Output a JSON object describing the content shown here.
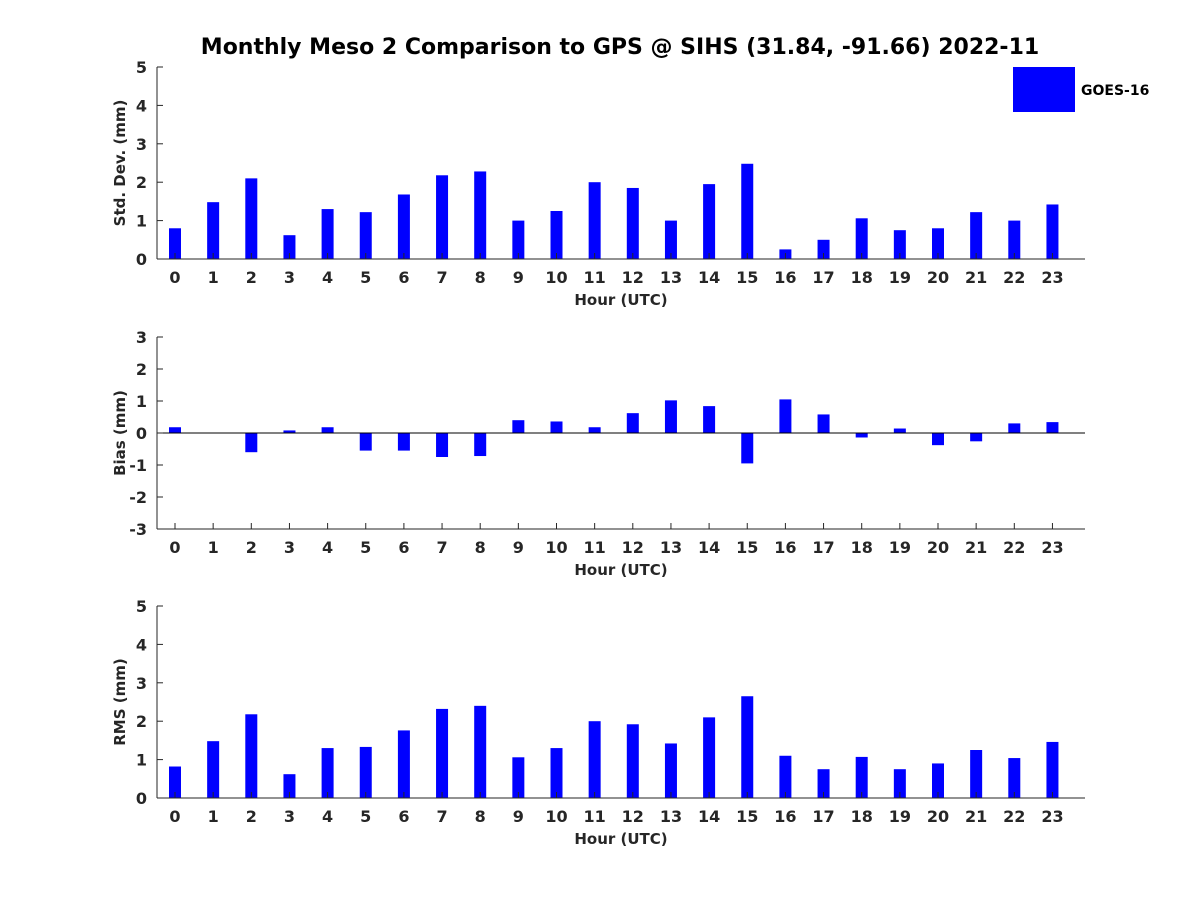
{
  "title": "Monthly Meso 2 Comparison to GPS @ SIHS (31.84, -91.66) 2022-11",
  "legend": {
    "label": "GOES-16",
    "color": "#0000ff",
    "placement": "top-right"
  },
  "colors": {
    "bar": "#0000ff",
    "axis": "#262626",
    "zero_line": "#000000"
  },
  "chart_data": [
    {
      "type": "bar",
      "xlabel": "Hour (UTC)",
      "ylabel": "Std. Dev. (mm)",
      "ylim": [
        0,
        5
      ],
      "yticks": [
        0,
        1,
        2,
        3,
        4,
        5
      ],
      "categories": [
        "0",
        "1",
        "2",
        "3",
        "4",
        "5",
        "6",
        "7",
        "8",
        "9",
        "10",
        "11",
        "12",
        "13",
        "14",
        "15",
        "16",
        "17",
        "18",
        "19",
        "20",
        "21",
        "22",
        "23"
      ],
      "series": [
        {
          "name": "GOES-16",
          "values": [
            0.8,
            1.48,
            2.1,
            0.62,
            1.3,
            1.22,
            1.68,
            2.18,
            2.28,
            1.0,
            1.25,
            2.0,
            1.85,
            1.0,
            1.95,
            2.48,
            0.25,
            0.5,
            1.06,
            0.75,
            0.8,
            1.22,
            1.0,
            1.42
          ]
        }
      ],
      "grid": false
    },
    {
      "type": "bar",
      "xlabel": "Hour (UTC)",
      "ylabel": "Bias (mm)",
      "ylim": [
        -3,
        3
      ],
      "yticks": [
        -3,
        -2,
        -1,
        0,
        1,
        2,
        3
      ],
      "categories": [
        "0",
        "1",
        "2",
        "3",
        "4",
        "5",
        "6",
        "7",
        "8",
        "9",
        "10",
        "11",
        "12",
        "13",
        "14",
        "15",
        "16",
        "17",
        "18",
        "19",
        "20",
        "21",
        "22",
        "23"
      ],
      "series": [
        {
          "name": "GOES-16",
          "values": [
            0.18,
            0.0,
            -0.6,
            0.08,
            0.18,
            -0.55,
            -0.55,
            -0.75,
            -0.72,
            0.4,
            0.36,
            0.18,
            0.62,
            1.02,
            0.84,
            -0.95,
            1.05,
            0.58,
            -0.14,
            0.14,
            -0.38,
            -0.26,
            0.3,
            0.34
          ]
        }
      ],
      "grid": false
    },
    {
      "type": "bar",
      "xlabel": "Hour (UTC)",
      "ylabel": "RMS (mm)",
      "ylim": [
        0,
        5
      ],
      "yticks": [
        0,
        1,
        2,
        3,
        4,
        5
      ],
      "categories": [
        "0",
        "1",
        "2",
        "3",
        "4",
        "5",
        "6",
        "7",
        "8",
        "9",
        "10",
        "11",
        "12",
        "13",
        "14",
        "15",
        "16",
        "17",
        "18",
        "19",
        "20",
        "21",
        "22",
        "23"
      ],
      "series": [
        {
          "name": "GOES-16",
          "values": [
            0.82,
            1.48,
            2.18,
            0.62,
            1.3,
            1.33,
            1.76,
            2.32,
            2.4,
            1.06,
            1.3,
            2.0,
            1.92,
            1.42,
            2.1,
            2.65,
            1.1,
            0.75,
            1.07,
            0.75,
            0.9,
            1.25,
            1.04,
            1.46
          ]
        }
      ],
      "grid": false
    }
  ]
}
